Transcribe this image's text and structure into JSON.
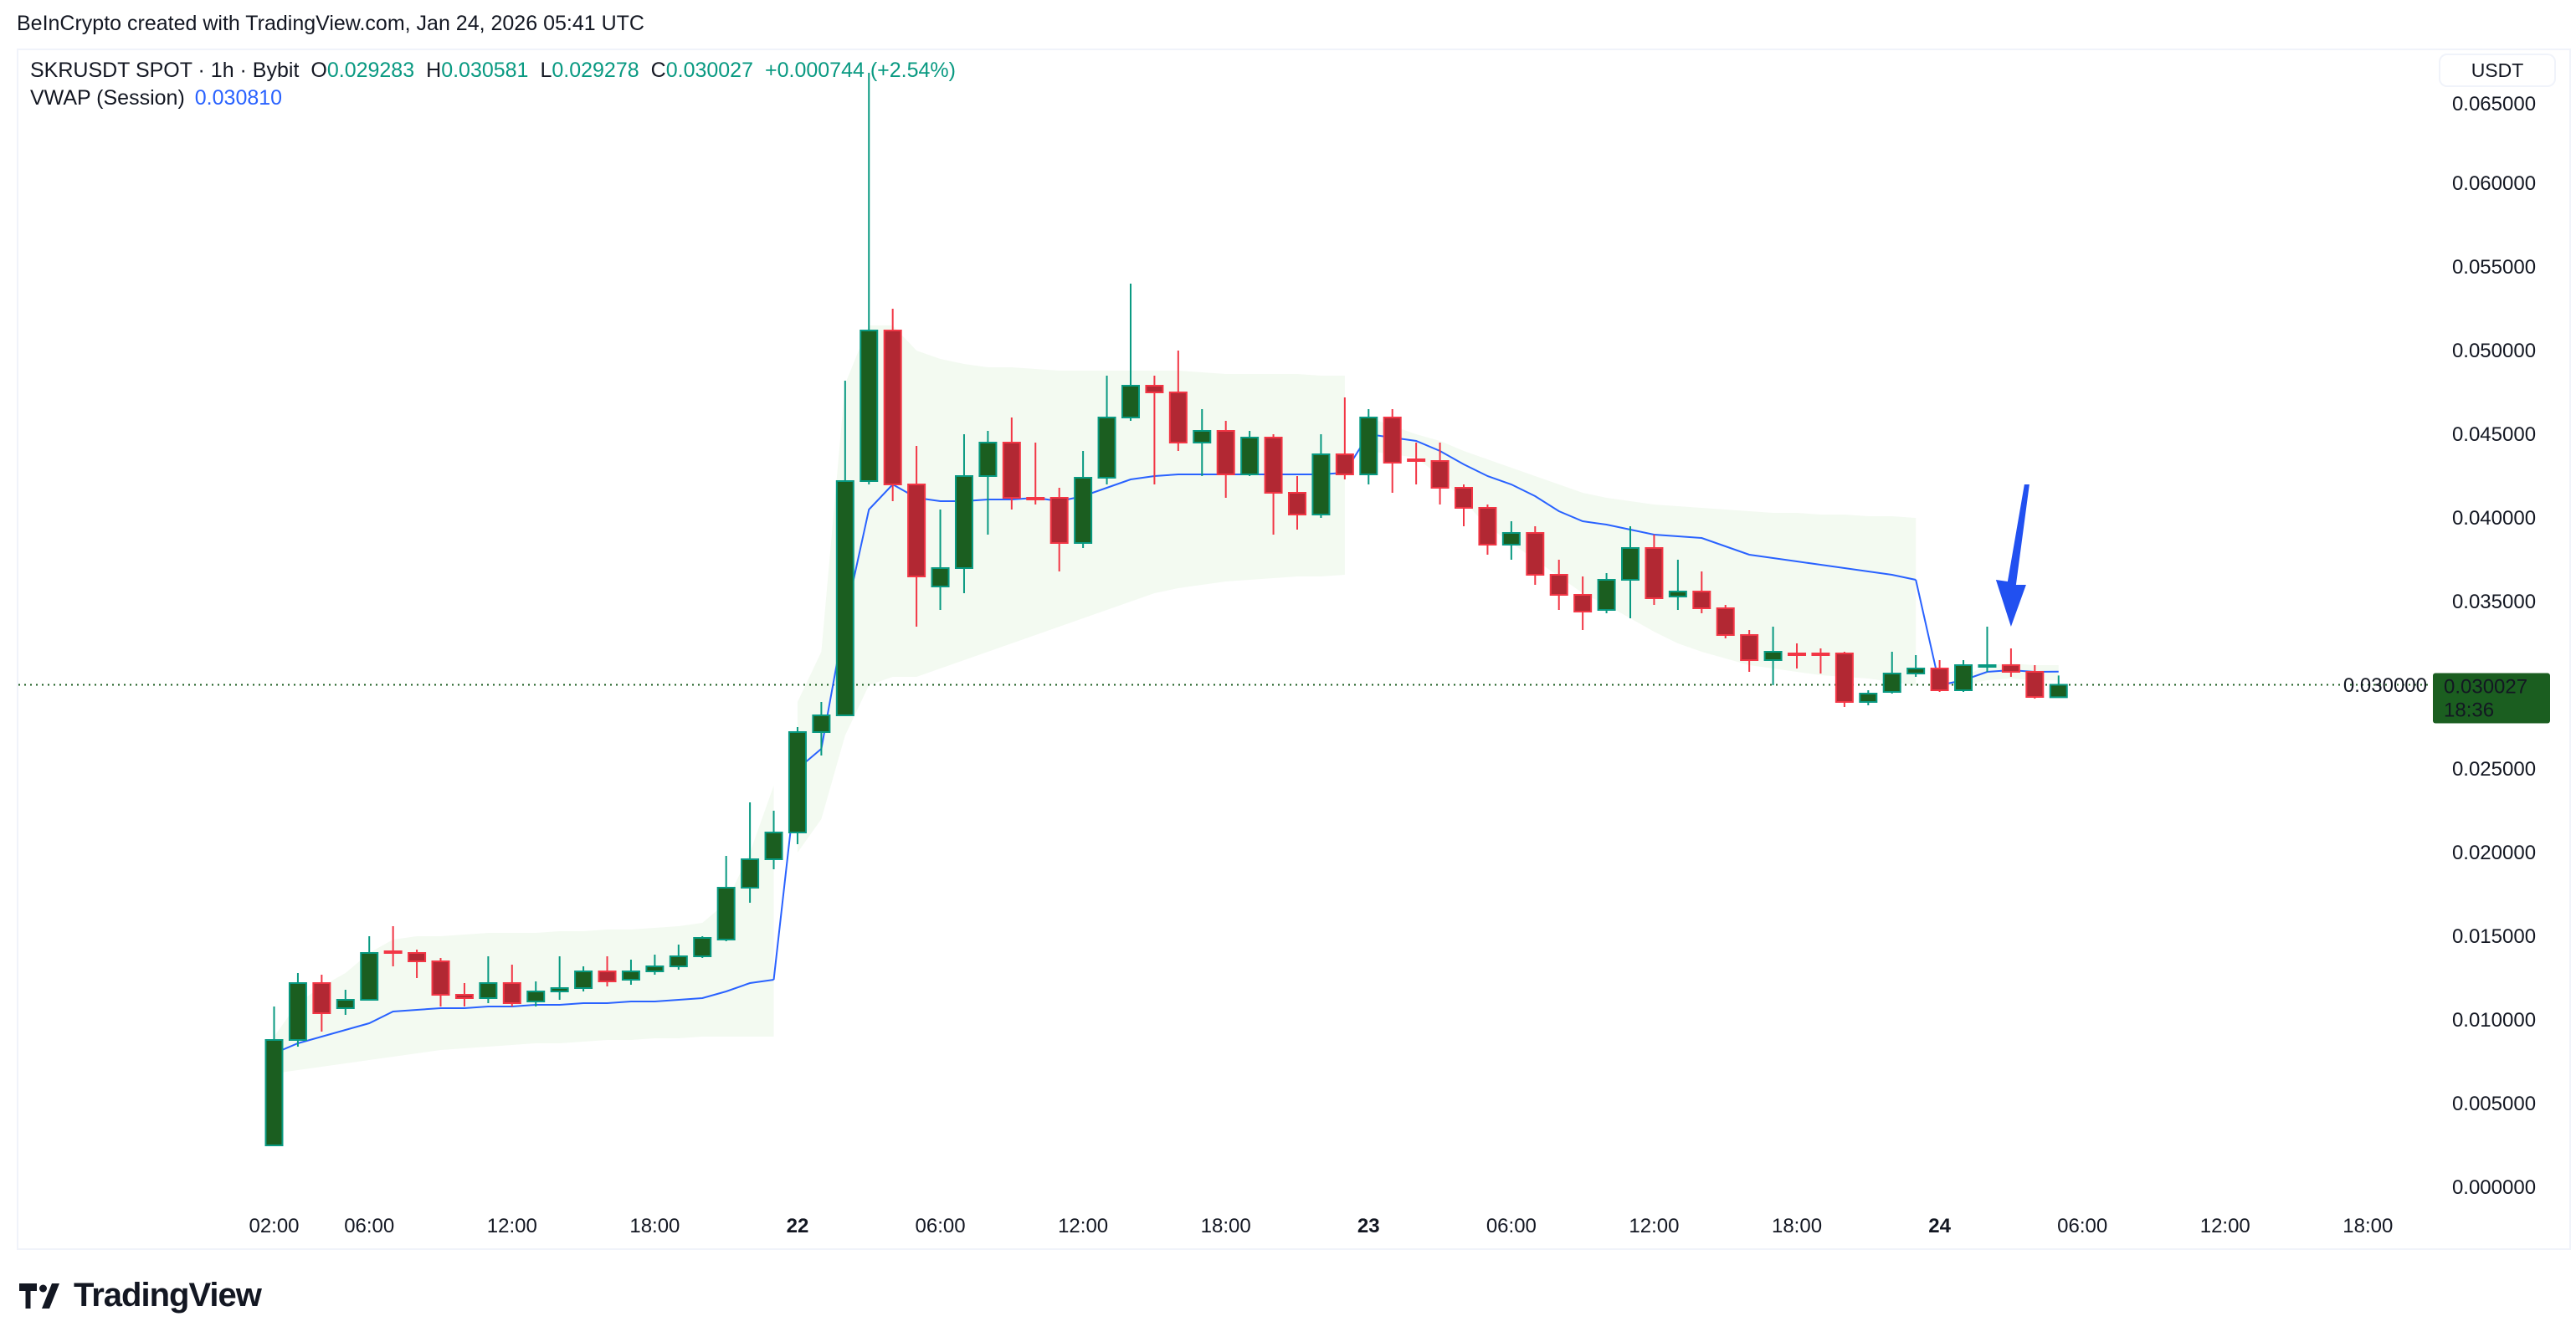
{
  "header": {
    "credit": "BeInCrypto created with TradingView.com, Jan 24, 2026 05:41 UTC"
  },
  "legend": {
    "symbol": "SKRUSDT SPOT · 1h · Bybit",
    "open_label": "O",
    "open": "0.029283",
    "high_label": "H",
    "high": "0.030581",
    "low_label": "L",
    "low": "0.029278",
    "close_label": "C",
    "close": "0.030027",
    "change": "+0.000744 (+2.54%)",
    "indicator": "VWAP (Session)",
    "indicator_value": "0.030810"
  },
  "price_axis": {
    "currency": "USDT",
    "last_price": "0.030027",
    "countdown": "18:36"
  },
  "brand": {
    "name": "TradingView"
  },
  "colors": {
    "up": "#1b5e20",
    "up_border": "#089981",
    "down": "#b22833",
    "down_border": "#f23645",
    "vwap": "#2962ff",
    "band": "#f3faf1",
    "last_price_bg": "#1b5e20",
    "arrow": "#2150f0"
  },
  "chart_data": {
    "type": "candlestick",
    "interval": "1h",
    "start_time": "Jan 21 02:00",
    "ylim": [
      0,
      0.065
    ],
    "yticks": [
      "0.000000",
      "0.005000",
      "0.010000",
      "0.015000",
      "0.020000",
      "0.025000",
      "0.030000",
      "0.035000",
      "0.040000",
      "0.045000",
      "0.050000",
      "0.055000",
      "0.060000",
      "0.065000"
    ],
    "xticks": [
      {
        "label": "02:00",
        "hour": 0
      },
      {
        "label": "06:00",
        "hour": 4
      },
      {
        "label": "12:00",
        "hour": 10
      },
      {
        "label": "18:00",
        "hour": 16
      },
      {
        "label": "22",
        "hour": 22,
        "bold": true
      },
      {
        "label": "06:00",
        "hour": 28
      },
      {
        "label": "12:00",
        "hour": 34
      },
      {
        "label": "18:00",
        "hour": 40
      },
      {
        "label": "23",
        "hour": 46,
        "bold": true
      },
      {
        "label": "06:00",
        "hour": 52
      },
      {
        "label": "12:00",
        "hour": 58
      },
      {
        "label": "18:00",
        "hour": 64
      },
      {
        "label": "24",
        "hour": 70,
        "bold": true
      },
      {
        "label": "06:00",
        "hour": 76
      },
      {
        "label": "12:00",
        "hour": 82
      },
      {
        "label": "18:00",
        "hour": 88
      }
    ],
    "ohlc": [
      [
        0.0025,
        0.0108,
        0.0025,
        0.0088
      ],
      [
        0.0088,
        0.0128,
        0.0084,
        0.0122
      ],
      [
        0.0122,
        0.0127,
        0.0093,
        0.0104
      ],
      [
        0.0107,
        0.0118,
        0.0103,
        0.0112
      ],
      [
        0.0112,
        0.015,
        0.0112,
        0.014
      ],
      [
        0.0141,
        0.0156,
        0.0132,
        0.014
      ],
      [
        0.014,
        0.0142,
        0.0125,
        0.0135
      ],
      [
        0.0135,
        0.0137,
        0.0108,
        0.0115
      ],
      [
        0.0115,
        0.0122,
        0.0108,
        0.0113
      ],
      [
        0.0113,
        0.0138,
        0.011,
        0.0122
      ],
      [
        0.0122,
        0.0133,
        0.0108,
        0.011
      ],
      [
        0.0111,
        0.0123,
        0.0108,
        0.0117
      ],
      [
        0.0117,
        0.0138,
        0.0112,
        0.0119
      ],
      [
        0.0119,
        0.0132,
        0.0117,
        0.0129
      ],
      [
        0.0129,
        0.0138,
        0.012,
        0.0123
      ],
      [
        0.0124,
        0.0136,
        0.0121,
        0.0129
      ],
      [
        0.0129,
        0.0139,
        0.0127,
        0.0132
      ],
      [
        0.0132,
        0.0145,
        0.013,
        0.0138
      ],
      [
        0.0138,
        0.015,
        0.0137,
        0.0149
      ],
      [
        0.0148,
        0.0198,
        0.0147,
        0.0179
      ],
      [
        0.0179,
        0.023,
        0.017,
        0.0196
      ],
      [
        0.0196,
        0.0225,
        0.019,
        0.0212
      ],
      [
        0.0212,
        0.0275,
        0.0205,
        0.0272
      ],
      [
        0.0272,
        0.029,
        0.0258,
        0.0282
      ],
      [
        0.0282,
        0.0482,
        0.0282,
        0.0422
      ],
      [
        0.0422,
        0.0666,
        0.042,
        0.0512
      ],
      [
        0.0512,
        0.0525,
        0.041,
        0.042
      ],
      [
        0.042,
        0.0443,
        0.0335,
        0.0365
      ],
      [
        0.0359,
        0.0405,
        0.0345,
        0.037
      ],
      [
        0.037,
        0.045,
        0.0355,
        0.0425
      ],
      [
        0.0425,
        0.0452,
        0.039,
        0.0445
      ],
      [
        0.0445,
        0.046,
        0.0405,
        0.0412
      ],
      [
        0.0412,
        0.0445,
        0.0408,
        0.0411
      ],
      [
        0.0412,
        0.0418,
        0.0368,
        0.0385
      ],
      [
        0.0385,
        0.044,
        0.0382,
        0.0424
      ],
      [
        0.0424,
        0.0485,
        0.042,
        0.046
      ],
      [
        0.046,
        0.054,
        0.0458,
        0.0479
      ],
      [
        0.0479,
        0.0485,
        0.042,
        0.0475
      ],
      [
        0.0475,
        0.05,
        0.044,
        0.0445
      ],
      [
        0.0445,
        0.0465,
        0.0425,
        0.0452
      ],
      [
        0.0452,
        0.0458,
        0.0412,
        0.0426
      ],
      [
        0.0426,
        0.0452,
        0.0425,
        0.0448
      ],
      [
        0.0448,
        0.045,
        0.039,
        0.0415
      ],
      [
        0.0415,
        0.0425,
        0.0393,
        0.0402
      ],
      [
        0.0402,
        0.045,
        0.04,
        0.0438
      ],
      [
        0.0438,
        0.0472,
        0.0423,
        0.0426
      ],
      [
        0.0426,
        0.0465,
        0.042,
        0.046
      ],
      [
        0.046,
        0.0465,
        0.0415,
        0.0433
      ],
      [
        0.0435,
        0.0445,
        0.042,
        0.0434
      ],
      [
        0.0434,
        0.0445,
        0.0408,
        0.0418
      ],
      [
        0.0418,
        0.042,
        0.0395,
        0.0406
      ],
      [
        0.0406,
        0.0408,
        0.0378,
        0.0384
      ],
      [
        0.0384,
        0.0398,
        0.0375,
        0.0391
      ],
      [
        0.0391,
        0.0395,
        0.036,
        0.0366
      ],
      [
        0.0366,
        0.0375,
        0.0345,
        0.0354
      ],
      [
        0.0354,
        0.0365,
        0.0333,
        0.0344
      ],
      [
        0.0345,
        0.0367,
        0.0343,
        0.0363
      ],
      [
        0.0363,
        0.0395,
        0.034,
        0.0382
      ],
      [
        0.0382,
        0.039,
        0.0348,
        0.0352
      ],
      [
        0.0353,
        0.0375,
        0.0345,
        0.0356
      ],
      [
        0.0356,
        0.0368,
        0.0343,
        0.0346
      ],
      [
        0.0346,
        0.0348,
        0.0328,
        0.033
      ],
      [
        0.033,
        0.0333,
        0.0308,
        0.0315
      ],
      [
        0.0315,
        0.0335,
        0.03,
        0.032
      ],
      [
        0.0319,
        0.0325,
        0.031,
        0.0318
      ],
      [
        0.0319,
        0.0322,
        0.0307,
        0.0318
      ],
      [
        0.0319,
        0.032,
        0.0287,
        0.029
      ],
      [
        0.029,
        0.0297,
        0.0288,
        0.0295
      ],
      [
        0.0296,
        0.032,
        0.0295,
        0.0307
      ],
      [
        0.0307,
        0.0318,
        0.0305,
        0.031
      ],
      [
        0.031,
        0.0315,
        0.0296,
        0.0297
      ],
      [
        0.0297,
        0.0315,
        0.0296,
        0.0312
      ],
      [
        0.0311,
        0.0335,
        0.0308,
        0.0312
      ],
      [
        0.0312,
        0.0322,
        0.0305,
        0.0308
      ],
      [
        0.0308,
        0.0312,
        0.0292,
        0.0293
      ],
      [
        0.029283,
        0.030581,
        0.029278,
        0.030027
      ]
    ],
    "sessions": [
      [
        0,
        21
      ],
      [
        22,
        45
      ],
      [
        46,
        69
      ],
      [
        70,
        75
      ]
    ],
    "vwap": [
      0.008,
      0.0086,
      0.009,
      0.0094,
      0.0098,
      0.0105,
      0.0106,
      0.0107,
      0.0107,
      0.0108,
      0.0108,
      0.0109,
      0.0109,
      0.011,
      0.011,
      0.0111,
      0.0111,
      0.0112,
      0.0113,
      0.0117,
      0.0122,
      0.0124,
      0.025,
      0.0262,
      0.034,
      0.0405,
      0.042,
      0.0412,
      0.041,
      0.041,
      0.0411,
      0.0411,
      0.0412,
      0.041,
      0.0413,
      0.0418,
      0.0423,
      0.0425,
      0.0426,
      0.0426,
      0.0426,
      0.0426,
      0.0426,
      0.0426,
      0.0426,
      0.0427,
      0.045,
      0.0448,
      0.0446,
      0.044,
      0.0432,
      0.0425,
      0.042,
      0.0413,
      0.0404,
      0.0398,
      0.0396,
      0.0393,
      0.039,
      0.0389,
      0.0388,
      0.0383,
      0.0378,
      0.0376,
      0.0374,
      0.0372,
      0.037,
      0.0368,
      0.0366,
      0.0363,
      0.03,
      0.0303,
      0.0308,
      0.0309,
      0.0308,
      0.03081
    ],
    "band_upper": [
      0.009,
      0.011,
      0.012,
      0.0128,
      0.014,
      0.0148,
      0.015,
      0.015,
      0.0151,
      0.0152,
      0.0152,
      0.0152,
      0.0153,
      0.0153,
      0.0154,
      0.0154,
      0.0155,
      0.0156,
      0.0158,
      0.017,
      0.02,
      0.024,
      0.029,
      0.032,
      0.048,
      0.0515,
      0.0515,
      0.05,
      0.0495,
      0.0492,
      0.049,
      0.049,
      0.0489,
      0.0488,
      0.0488,
      0.0488,
      0.0488,
      0.0488,
      0.0488,
      0.0487,
      0.0486,
      0.0486,
      0.0486,
      0.0486,
      0.0485,
      0.0485,
      0.046,
      0.0455,
      0.045,
      0.0446,
      0.044,
      0.0435,
      0.043,
      0.0425,
      0.042,
      0.0415,
      0.0412,
      0.041,
      0.0408,
      0.0407,
      0.0406,
      0.0405,
      0.0404,
      0.0403,
      0.0403,
      0.0402,
      0.0402,
      0.0401,
      0.0401,
      0.04,
      0.03,
      0.0305,
      0.0312,
      0.0313,
      0.0312,
      0.0312
    ],
    "band_lower": [
      0.0068,
      0.007,
      0.0072,
      0.0074,
      0.0076,
      0.0078,
      0.008,
      0.0082,
      0.0083,
      0.0084,
      0.0085,
      0.0086,
      0.0086,
      0.0087,
      0.0088,
      0.0088,
      0.0089,
      0.0089,
      0.009,
      0.009,
      0.009,
      0.009,
      0.02,
      0.022,
      0.027,
      0.03,
      0.0305,
      0.0305,
      0.031,
      0.0315,
      0.032,
      0.0325,
      0.033,
      0.0335,
      0.034,
      0.0345,
      0.035,
      0.0355,
      0.0358,
      0.036,
      0.0362,
      0.0363,
      0.0364,
      0.0365,
      0.0365,
      0.0366,
      0.044,
      0.0438,
      0.0436,
      0.0425,
      0.041,
      0.0395,
      0.0385,
      0.0375,
      0.0365,
      0.0355,
      0.0348,
      0.034,
      0.0332,
      0.0325,
      0.032,
      0.0316,
      0.0312,
      0.031,
      0.0308,
      0.0306,
      0.0305,
      0.0304,
      0.0302,
      0.03,
      0.03,
      0.03,
      0.0303,
      0.0304,
      0.0303,
      0.0303
    ],
    "last_price": 0.030027,
    "annotation": {
      "type": "arrow-down",
      "at_hour": 73,
      "price_from": 0.042,
      "price_to": 0.0335
    }
  }
}
